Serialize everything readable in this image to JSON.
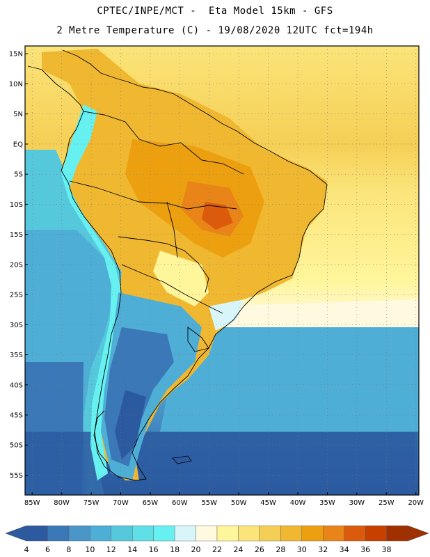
{
  "header": {
    "title_line1": "CPTEC/INPE/MCT -  Eta Model 15km - GFS",
    "title_line2": "2 Metre Temperature (C) - 19/08/2020 12UTC fct=194h"
  },
  "map": {
    "lat_labels": [
      "15N",
      "10N",
      "5N",
      "EQ",
      "5S",
      "10S",
      "15S",
      "20S",
      "25S",
      "30S",
      "35S",
      "40S",
      "45S",
      "50S",
      "55S"
    ],
    "lon_labels": [
      "85W",
      "80W",
      "75W",
      "70W",
      "65W",
      "60W",
      "55W",
      "50W",
      "45W",
      "40W",
      "35W",
      "30W",
      "25W",
      "20W"
    ],
    "grid": "dotted"
  },
  "colorbar": {
    "ticks": [
      "4",
      "6",
      "8",
      "10",
      "12",
      "14",
      "16",
      "18",
      "20",
      "22",
      "24",
      "26",
      "28",
      "30",
      "32",
      "34",
      "36",
      "38"
    ],
    "colors": [
      "#2c5aa0",
      "#3b78b8",
      "#4a96c8",
      "#4eaed6",
      "#56c8dc",
      "#5ee0e6",
      "#66f0f0",
      "#d8f6fa",
      "#fff9e0",
      "#fff59a",
      "#fbe47a",
      "#f5cf55",
      "#f0b830",
      "#eca010",
      "#e88418",
      "#dc5a0c",
      "#c84000",
      "#a03000"
    ],
    "low_color": "#2c5aa0",
    "high_color": "#a03000"
  }
}
